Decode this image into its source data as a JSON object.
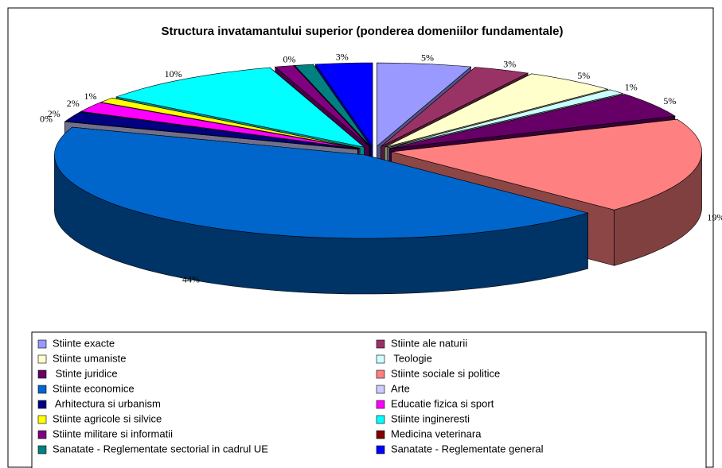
{
  "chart_data": {
    "type": "pie3d",
    "title": "Structura invatamantului superior (ponderea domeniilor fundamentale)",
    "categories": [
      "Stiinte exacte",
      "Stiinte ale naturii",
      "Stiinte umaniste",
      " Teologie",
      " Stinte juridice",
      "Stiinte sociale si politice",
      "Stiinte economice",
      "Arte",
      " Arhitectura si urbanism",
      "Educatie fizica si sport",
      "Stiinte agricole si silvice",
      "Stiinte ingineresti",
      "Stiinte militare si informatii",
      "Medicina veterinara",
      "Sanatate - Reglementate sectorial in cadrul UE",
      "Sanatate - Reglementate general"
    ],
    "values": [
      5,
      3,
      5,
      1,
      5,
      19,
      44,
      0,
      2,
      2,
      1,
      10,
      1,
      0,
      1,
      3
    ],
    "value_labels": [
      "5%",
      "3%",
      "5%",
      "1%",
      "5%",
      "19%",
      "44%",
      "0%",
      "2%",
      "2%",
      "1%",
      "10%",
      null,
      "0%",
      null,
      "3%"
    ],
    "colors": [
      "#9999ff",
      "#993366",
      "#ffffcc",
      "#ccffff",
      "#660066",
      "#ff8080",
      "#0066cc",
      "#ccccff",
      "#000080",
      "#ff00ff",
      "#ffff00",
      "#00ffff",
      "#800080",
      "#800000",
      "#008080",
      "#0000ff"
    ],
    "legend": "bottom"
  }
}
